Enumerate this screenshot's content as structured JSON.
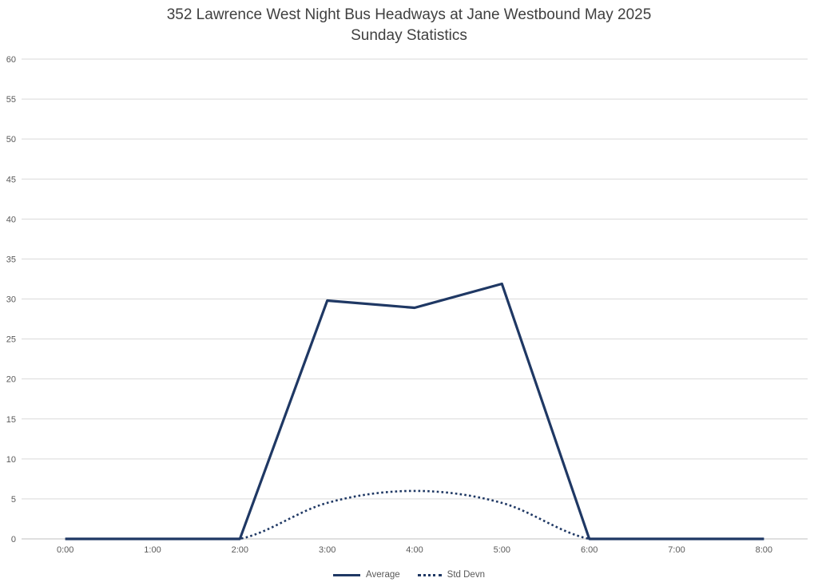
{
  "title": {
    "line1": "352 Lawrence West Night Bus Headways at Jane Westbound May 2025",
    "line2": "Sunday Statistics"
  },
  "colors": {
    "series": "#1F3864",
    "gridline": "#D9D9D9",
    "axis_line": "#BFBFBF",
    "tick_text": "#595959",
    "title_text": "#404040"
  },
  "chart_data": {
    "type": "line",
    "title": "352 Lawrence West Night Bus Headways at Jane Westbound May 2025 — Sunday Statistics",
    "categories": [
      "0:00",
      "1:00",
      "2:00",
      "3:00",
      "4:00",
      "5:00",
      "6:00",
      "7:00",
      "8:00"
    ],
    "series": [
      {
        "name": "Average",
        "style": "solid",
        "values": [
          0,
          0,
          0,
          29.8,
          28.9,
          31.9,
          0,
          0,
          0
        ]
      },
      {
        "name": "Std Devn",
        "style": "dotted",
        "smoothed": true,
        "values": [
          0,
          0,
          0,
          4.5,
          6.0,
          4.5,
          0,
          0,
          0
        ]
      }
    ],
    "xlabel": "",
    "ylabel": "",
    "ylim": [
      0,
      60
    ],
    "ytick_step": 5,
    "grid": true,
    "legend_position": "bottom"
  }
}
